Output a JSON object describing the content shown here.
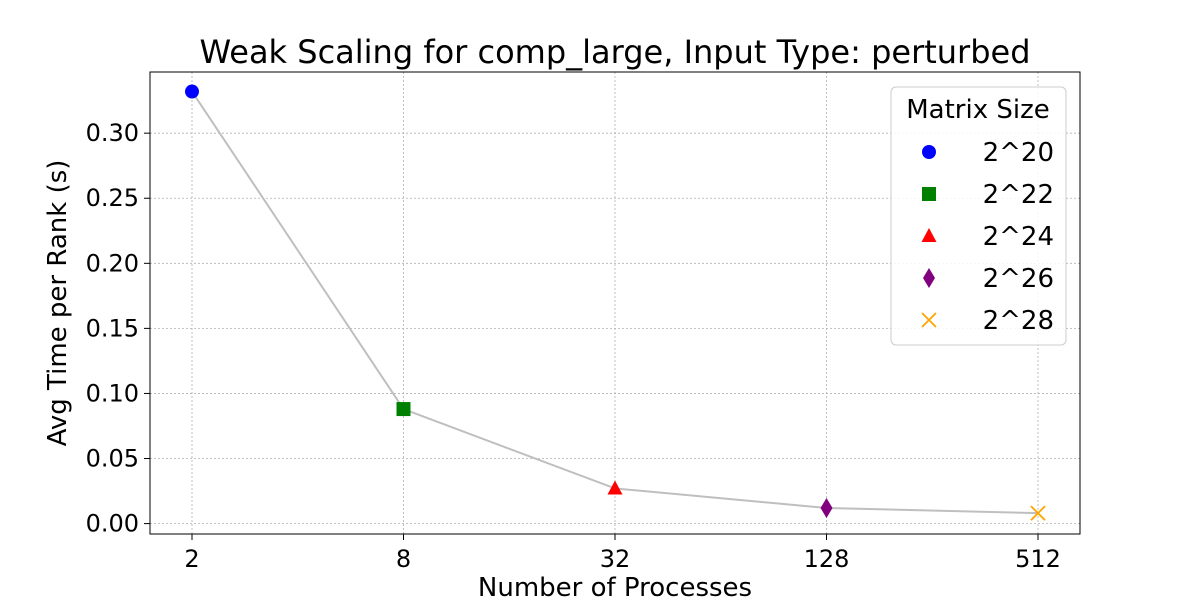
{
  "chart_data": {
    "type": "line",
    "title": "Weak Scaling for comp_large, Input Type: perturbed",
    "xlabel": "Number of Processes",
    "ylabel": "Avg Time per Rank (s)",
    "x_scale": "log2",
    "x": [
      2,
      8,
      32,
      128,
      512
    ],
    "x_tick_labels": [
      "2",
      "8",
      "32",
      "128",
      "512"
    ],
    "y": [
      0.332,
      0.088,
      0.027,
      0.012,
      0.008
    ],
    "ylim": [
      -0.008,
      0.347
    ],
    "y_ticks": [
      0.0,
      0.05,
      0.1,
      0.15,
      0.2,
      0.25,
      0.3
    ],
    "y_tick_labels": [
      "0.00",
      "0.05",
      "0.10",
      "0.15",
      "0.20",
      "0.25",
      "0.30"
    ],
    "grid": true,
    "line_color": "#bfbfbf",
    "points": [
      {
        "label": "2^20",
        "x": 2,
        "y": 0.332,
        "marker": "circle",
        "color": "#0000ff"
      },
      {
        "label": "2^22",
        "x": 8,
        "y": 0.088,
        "marker": "square",
        "color": "#008000"
      },
      {
        "label": "2^24",
        "x": 32,
        "y": 0.027,
        "marker": "triangle",
        "color": "#ff0000"
      },
      {
        "label": "2^26",
        "x": 128,
        "y": 0.012,
        "marker": "diamond",
        "color": "#800080"
      },
      {
        "label": "2^28",
        "x": 512,
        "y": 0.008,
        "marker": "x",
        "color": "#ffa500"
      }
    ],
    "legend": {
      "title": "Matrix Size",
      "placement": "top-right"
    }
  }
}
